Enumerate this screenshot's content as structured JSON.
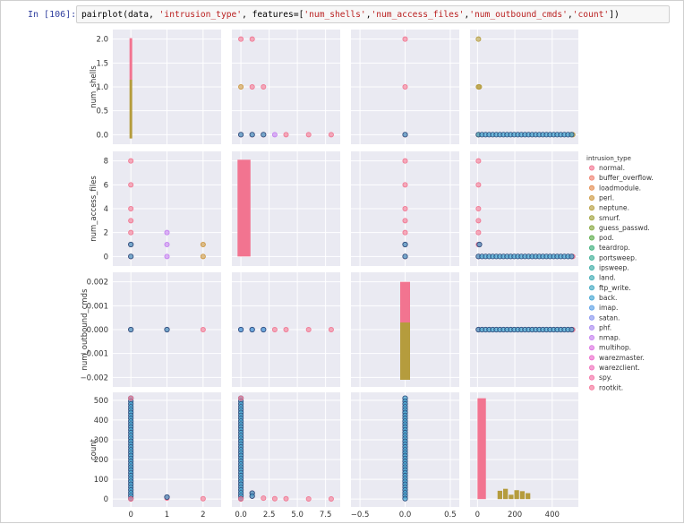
{
  "cell": {
    "prompt": "In [106]:",
    "code": {
      "fn": "pairplot(data, ",
      "hue_arg": "'intrusion_type'",
      "mid": ", features=[",
      "f1": "'num_shells'",
      "f2": "'num_access_files'",
      "f3": "'num_outbound_cmds'",
      "f4": "'count'",
      "end": "])"
    }
  },
  "legend": {
    "title": "intrusion_type",
    "items": [
      {
        "label": "normal.",
        "color": "#f27490"
      },
      {
        "label": "buffer_overflow.",
        "color": "#f0806f"
      },
      {
        "label": "loadmodule.",
        "color": "#e38b4e"
      },
      {
        "label": "perl.",
        "color": "#cc963e"
      },
      {
        "label": "neptune.",
        "color": "#b59c3d"
      },
      {
        "label": "smurf.",
        "color": "#a0a13c"
      },
      {
        "label": "guess_passwd.",
        "color": "#86a63e"
      },
      {
        "label": "pod.",
        "color": "#5bab48"
      },
      {
        "label": "teardrop.",
        "color": "#3aae79"
      },
      {
        "label": "portsweep.",
        "color": "#3aad93"
      },
      {
        "label": "ipsweep.",
        "color": "#3aaba4"
      },
      {
        "label": "land.",
        "color": "#3daab3"
      },
      {
        "label": "ftp_write.",
        "color": "#3fa8c1"
      },
      {
        "label": "back.",
        "color": "#41a5d2"
      },
      {
        "label": "imap.",
        "color": "#5aa0e6"
      },
      {
        "label": "satan.",
        "color": "#8795ef"
      },
      {
        "label": "phf.",
        "color": "#a98bf0"
      },
      {
        "label": "nmap.",
        "color": "#c47ff0"
      },
      {
        "label": "multihop.",
        "color": "#dc72e2"
      },
      {
        "label": "warezmaster.",
        "color": "#ec6acd"
      },
      {
        "label": "warezclient.",
        "color": "#f06ebb"
      },
      {
        "label": "spy.",
        "color": "#f471a7"
      },
      {
        "label": "rootkit.",
        "color": "#f5749a"
      }
    ]
  },
  "chart_data": {
    "type": "scatter",
    "title": "",
    "variables": [
      "num_shells",
      "num_access_files",
      "num_outbound_cmds",
      "count"
    ],
    "axis_ranges": {
      "num_shells": [
        -0.2,
        2.2
      ],
      "num_access_files": [
        -0.8,
        8.8
      ],
      "num_outbound_cmds": [
        -0.0024,
        0.0024
      ],
      "count": [
        -40,
        540
      ]
    },
    "axis_x_ranges": {
      "num_shells": [
        -0.5,
        2.5
      ],
      "num_access_files": [
        -0.8,
        8.8
      ],
      "num_outbound_cmds": [
        -0.6,
        0.6
      ],
      "count": [
        -40,
        540
      ]
    },
    "ticks": {
      "num_shells": [
        0.0,
        0.5,
        1.0,
        1.5,
        2.0
      ],
      "num_access_files": [
        0,
        2,
        4,
        6,
        8
      ],
      "num_outbound_cmds": [
        -0.002,
        -0.001,
        0.0,
        0.001,
        0.002
      ],
      "count": [
        0,
        100,
        200,
        300,
        400,
        500
      ]
    },
    "tick_labels": {
      "num_shells_y": [
        "0.0",
        "0.5",
        "1.0",
        "1.5",
        "2.0"
      ],
      "num_access_files_y": [
        "0",
        "2",
        "4",
        "6",
        "8"
      ],
      "num_outbound_cmds_y": [
        "−0.002",
        "−0.001",
        "0.000",
        "0.001",
        "0.002"
      ],
      "count_y": [
        "0",
        "100",
        "200",
        "300",
        "400",
        "500"
      ],
      "num_shells_x": [
        "0",
        "1",
        "2"
      ],
      "num_access_files_x": [
        "0.0",
        "2.5",
        "5.0",
        "7.5"
      ],
      "num_outbound_cmds_x": [
        "−0.5",
        "0.0",
        "0.5"
      ],
      "count_x": [
        "0",
        "200",
        "400"
      ]
    },
    "x_tick_values": {
      "num_shells": [
        0,
        1,
        2
      ],
      "num_access_files": [
        0,
        2.5,
        5,
        7.5
      ],
      "num_outbound_cmds": [
        -0.5,
        0,
        0.5
      ],
      "count": [
        0,
        200,
        400
      ]
    },
    "diag_hist": {
      "num_shells": [
        {
          "label": "normal.",
          "x": 0,
          "from": 1.15,
          "to": 2.02
        },
        {
          "label": "neptune.",
          "x": 0,
          "from": -0.08,
          "to": 1.15
        }
      ],
      "num_access_files": [
        {
          "label": "normal.",
          "from": 0,
          "to": 8.1,
          "x0": -0.3,
          "x1": 0.85,
          "step": 4.6
        }
      ],
      "num_outbound_cmds": [
        {
          "label": "normal.",
          "x": 0,
          "from": 0.0003,
          "to": 0.002
        },
        {
          "label": "neptune.",
          "x": 0,
          "from": -0.0021,
          "to": 0.0003
        }
      ],
      "count": [
        {
          "label": "normal.",
          "x0": 0,
          "x1": 45,
          "to": 510,
          "color": "#f27490"
        },
        {
          "label": "neptune.",
          "bins": [
            [
              105,
              135,
              42
            ],
            [
              135,
              165,
              52
            ],
            [
              165,
              195,
              22
            ],
            [
              195,
              225,
              45
            ],
            [
              225,
              255,
              40
            ],
            [
              255,
              285,
              30
            ]
          ],
          "color": "#b59c3d"
        }
      ]
    },
    "points": {
      "shells_access": [
        [
          0,
          0
        ],
        [
          0,
          1
        ],
        [
          0,
          8
        ],
        [
          0,
          6
        ],
        [
          0,
          4
        ],
        [
          0,
          3
        ],
        [
          0,
          2
        ],
        [
          1,
          2
        ],
        [
          1,
          1
        ],
        [
          1,
          0
        ],
        [
          2,
          1
        ],
        [
          2,
          0
        ]
      ],
      "shells_count": [
        [
          0,
          0
        ],
        [
          0,
          510
        ],
        [
          1,
          10
        ],
        [
          1,
          5
        ],
        [
          2,
          2
        ]
      ],
      "access_shells": [
        [
          0,
          0
        ],
        [
          0,
          1
        ],
        [
          0,
          2
        ],
        [
          1,
          0
        ],
        [
          1,
          1
        ],
        [
          1,
          2
        ],
        [
          2,
          0
        ],
        [
          2,
          1
        ],
        [
          3,
          0
        ],
        [
          4,
          0
        ],
        [
          6,
          0
        ],
        [
          8,
          0
        ]
      ],
      "outbound_shells": [
        [
          0,
          0
        ],
        [
          0,
          1
        ],
        [
          0,
          2
        ]
      ],
      "count_shells": [
        [
          5,
          0
        ],
        [
          5,
          1
        ],
        [
          5,
          2
        ],
        [
          10,
          1
        ],
        [
          510,
          0
        ]
      ],
      "access_count": [
        [
          0,
          0
        ],
        [
          0,
          510
        ],
        [
          1,
          30
        ],
        [
          1,
          15
        ],
        [
          2,
          5
        ],
        [
          3,
          2
        ],
        [
          4,
          2
        ],
        [
          6,
          1
        ],
        [
          8,
          1
        ]
      ],
      "outbound_access": [
        [
          0,
          0
        ],
        [
          0,
          1
        ],
        [
          0,
          2
        ],
        [
          0,
          3
        ],
        [
          0,
          4
        ],
        [
          0,
          6
        ],
        [
          0,
          8
        ]
      ],
      "count_access": [
        [
          5,
          0
        ],
        [
          5,
          1
        ],
        [
          5,
          2
        ],
        [
          5,
          3
        ],
        [
          5,
          4
        ],
        [
          5,
          6
        ],
        [
          5,
          8
        ],
        [
          10,
          1
        ],
        [
          510,
          0
        ]
      ],
      "count_outbound": [
        [
          5,
          0
        ],
        [
          510,
          0
        ]
      ]
    }
  }
}
